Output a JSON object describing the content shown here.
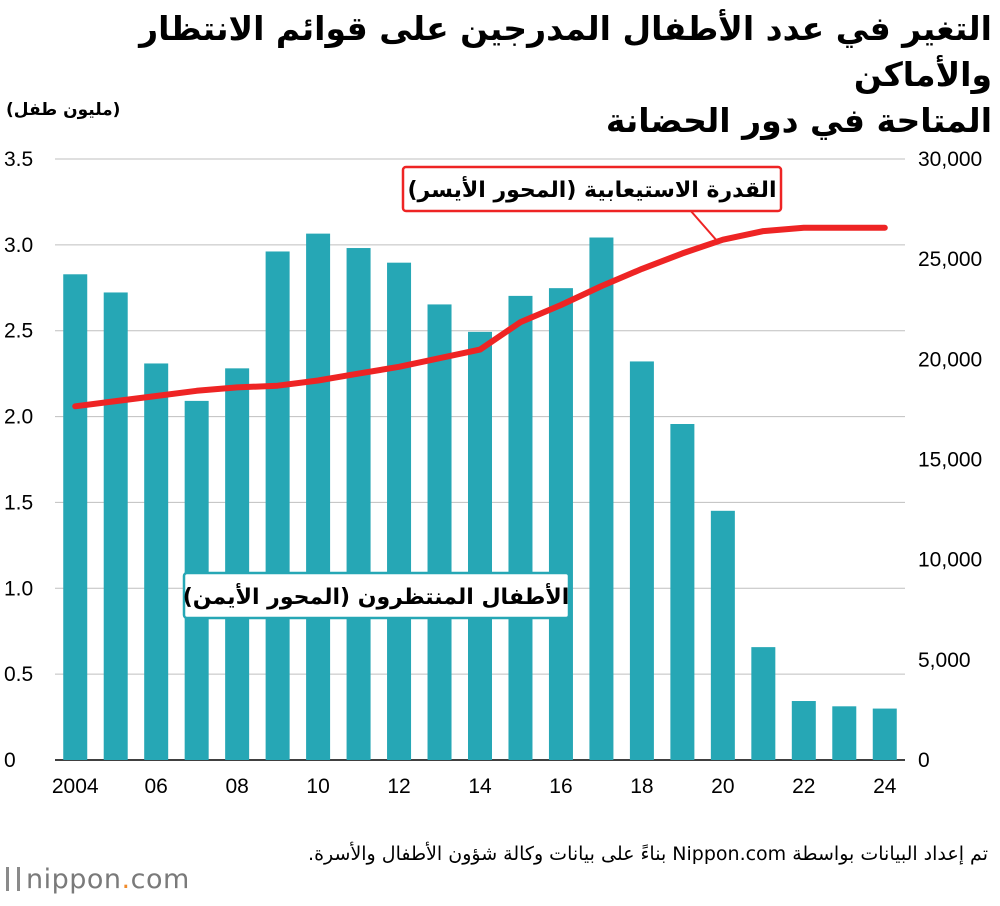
{
  "header": {
    "title_line1": "التغير في عدد الأطفال المدرجين على قوائم الانتظار والأماكن",
    "title_line2": "المتاحة في دور الحضانة",
    "unit": "(مليون طفل)"
  },
  "footer": {
    "source": "تم إعداد البيانات بواسطة Nippon.com بناءً على بيانات وكالة شؤون الأطفال والأسرة.",
    "logo_text": "nippon",
    "logo_dot": ".",
    "logo_suffix": "com"
  },
  "colors": {
    "bars": "#26a7b5",
    "line": "#ee2424",
    "grid": "#bfbfbf"
  },
  "chart_data": {
    "type": "bar",
    "categories": [
      "2004",
      "2005",
      "2006",
      "2007",
      "2008",
      "2009",
      "2010",
      "2011",
      "2012",
      "2013",
      "2014",
      "2015",
      "2016",
      "2017",
      "2018",
      "2019",
      "2020",
      "2021",
      "2022",
      "2023",
      "2024"
    ],
    "x_tick_labels": [
      "2004",
      "06",
      "08",
      "10",
      "12",
      "14",
      "16",
      "18",
      "20",
      "22",
      "24"
    ],
    "left_axis": {
      "ticks": [
        "0",
        "0.5",
        "1.0",
        "1.5",
        "2.0",
        "2.5",
        "3.0",
        "3.5"
      ],
      "ylim": [
        0,
        3.5
      ]
    },
    "right_axis": {
      "ticks": [
        "0",
        "5,000",
        "10,000",
        "15,000",
        "20,000",
        "25,000",
        "30,000"
      ],
      "ylim": [
        0,
        30000
      ]
    },
    "series": [
      {
        "name": "الأطفال المنتظرون (المحور الأيمن)",
        "type": "bar",
        "axis": "right",
        "values": [
          24245,
          23338,
          19794,
          17926,
          19550,
          25384,
          26275,
          25556,
          24825,
          22741,
          21371,
          23167,
          23553,
          26081,
          19895,
          16772,
          12439,
          5634,
          2944,
          2680,
          2567
        ]
      },
      {
        "name": "القدرة الاستيعابية (المحور الأيسر)",
        "type": "line",
        "axis": "left",
        "values": [
          2.06,
          2.09,
          2.12,
          2.15,
          2.17,
          2.18,
          2.21,
          2.25,
          2.29,
          2.34,
          2.39,
          2.55,
          2.65,
          2.76,
          2.86,
          2.95,
          3.03,
          3.08,
          3.1,
          3.1,
          3.1
        ]
      }
    ]
  }
}
